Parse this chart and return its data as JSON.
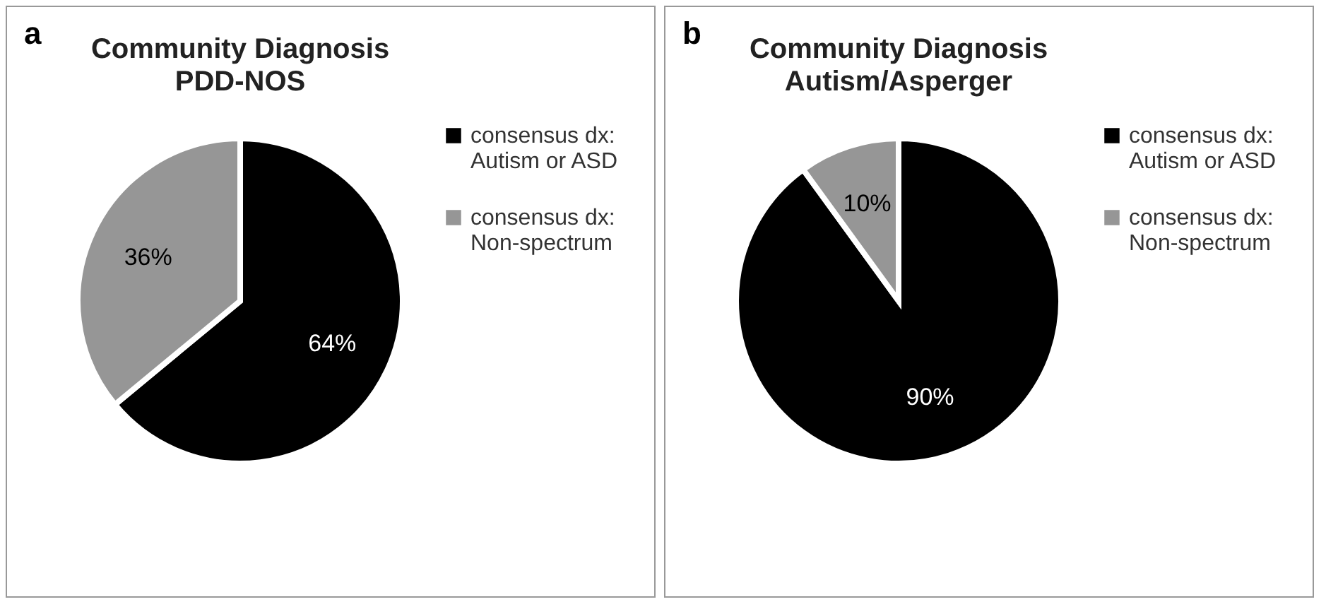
{
  "chart_data": [
    {
      "type": "pie",
      "title": "Community Diagnosis",
      "subtitle": "PDD-NOS",
      "annotations": [
        "a"
      ],
      "categories": [
        "consensus dx: Autism or ASD",
        "consensus dx: Non-spectrum"
      ],
      "values": [
        64,
        36
      ],
      "colors": [
        "#000000",
        "#969696"
      ],
      "value_labels": [
        "64%",
        "36%"
      ],
      "legend": "right"
    },
    {
      "type": "pie",
      "title": "Community Diagnosis",
      "subtitle": "Autism/Asperger",
      "annotations": [
        "b"
      ],
      "categories": [
        "consensus dx: Autism or ASD",
        "consensus dx: Non-spectrum"
      ],
      "values": [
        90,
        10
      ],
      "colors": [
        "#000000",
        "#969696"
      ],
      "value_labels": [
        "90%",
        "10%"
      ],
      "legend": "right"
    }
  ]
}
